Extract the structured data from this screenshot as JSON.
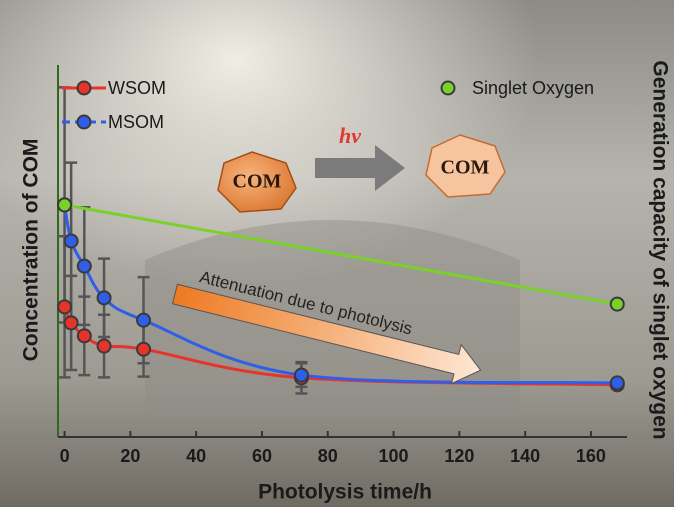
{
  "chart_data": {
    "type": "line",
    "x_label": "Photolysis time/h",
    "y_label": "Concentration of COM",
    "y2_label": "Generation capacity of singlet oxygen",
    "xlim": [
      -2,
      174
    ],
    "xticks": [
      0,
      20,
      40,
      60,
      80,
      100,
      120,
      140,
      160
    ],
    "ylim": [
      0,
      100
    ],
    "y2lim": [
      0,
      100
    ],
    "series": [
      {
        "name": "WSOM",
        "color": "#e8332a",
        "x": [
          0,
          2,
          6,
          12,
          24,
          72,
          168
        ],
        "values": [
          33.2,
          29.1,
          25.8,
          23.2,
          22.4,
          15.1,
          13.3
        ],
        "errors": [
          18,
          12,
          10,
          8,
          7,
          4,
          0
        ]
      },
      {
        "name": "MSOM",
        "color": "#2f5ee8",
        "x": [
          0,
          2,
          6,
          12,
          24,
          72,
          168
        ],
        "values": [
          59.2,
          50,
          43.6,
          35.5,
          29.8,
          15.8,
          13.8
        ],
        "errors": [
          30,
          20,
          15,
          10,
          11,
          3,
          0
        ]
      },
      {
        "name": "Singlet Oxygen",
        "color": "#7ad12a",
        "axis": "y2",
        "x": [
          0,
          168
        ],
        "values": [
          59.2,
          33.9
        ]
      }
    ],
    "annotations": {
      "reactant": "COM",
      "light": "hv",
      "product": "COM",
      "trend": "Attenuation due to photolysis"
    }
  }
}
